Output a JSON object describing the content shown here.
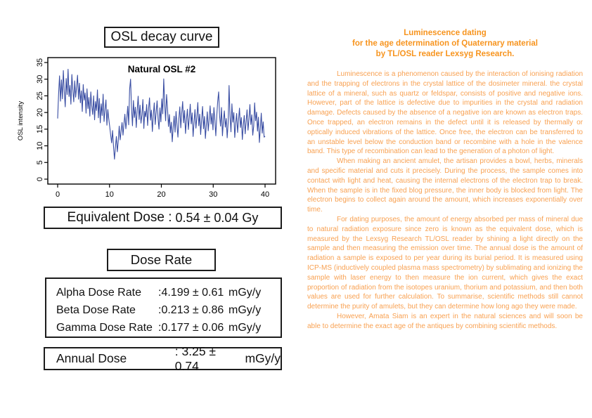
{
  "left_panel": {
    "decay_title": "OSL decay curve",
    "equivalent_dose": {
      "label": "Equivalent Dose :",
      "value": "0.54 ± 0.04",
      "unit": "Gy"
    },
    "dose_rate_title": "Dose Rate",
    "dose_rates": [
      {
        "label": "Alpha Dose Rate",
        "value": ":4.199 ± 0.61",
        "unit": "mGy/y"
      },
      {
        "label": "Beta Dose Rate",
        "value": ":0.213 ± 0.86",
        "unit": "mGy/y"
      },
      {
        "label": "Gamma Dose Rate",
        "value": ":0.177 ± 0.06",
        "unit": "mGy/y"
      }
    ],
    "annual_dose": {
      "label": "Annual Dose",
      "value": ": 3.25 ± 0.74",
      "unit": "mGy/y"
    }
  },
  "chart_data": {
    "type": "line",
    "title": "Natural OSL #2",
    "xlabel": "",
    "ylabel": "OSL intensity",
    "xlim": [
      0,
      40
    ],
    "ylim": [
      0,
      35
    ],
    "x_ticks": [
      0,
      10,
      20,
      30,
      40
    ],
    "y_ticks": [
      0,
      5,
      10,
      15,
      20,
      25,
      30,
      35
    ],
    "grid": false,
    "legend_position": "none",
    "line_color": "#3a4ea3",
    "values": [
      18.2,
      25.6,
      31.0,
      23.4,
      29.8,
      24.1,
      32.6,
      26.3,
      21.7,
      30.2,
      25.4,
      33.0,
      24.8,
      28.1,
      22.5,
      31.4,
      26.9,
      23.2,
      29.5,
      24.6,
      27.7,
      31.2,
      24.0,
      28.8,
      22.9,
      26.5,
      20.3,
      28.4,
      23.7,
      25.9,
      19.8,
      27.1,
      21.2,
      24.5,
      18.9,
      26.2,
      22.0,
      19.4,
      25.0,
      17.8,
      23.3,
      20.6,
      26.8,
      18.4,
      24.2,
      16.9,
      22.6,
      19.1,
      25.5,
      17.3,
      21.0,
      23.8,
      16.2,
      20.9,
      18.0,
      15.7,
      13.2,
      10.9,
      14.6,
      9.8,
      6.0,
      9.6,
      12.8,
      8.2,
      11.5,
      15.9,
      11.8,
      14.4,
      17.0,
      13.2,
      16.6,
      19.5,
      15.1,
      18.1,
      21.9,
      16.3,
      27.0,
      30.0,
      21.3,
      16.0,
      23.6,
      18.5,
      21.6,
      15.5,
      20.8,
      24.9,
      17.9,
      22.2,
      16.8,
      19.3,
      23.9,
      15.2,
      20.4,
      18.7,
      22.4,
      16.1,
      21.1,
      24.4,
      17.7,
      20.7,
      14.3,
      19.2,
      22.9,
      16.4,
      20.1,
      23.5,
      18.3,
      15.0,
      21.4,
      17.2,
      24.1,
      19.6,
      30.1,
      22.7,
      17.5,
      25.4,
      21.2,
      15.8,
      19.4,
      13.9,
      17.1,
      11.2,
      15.6,
      18.9,
      14.1,
      20.3,
      16.2,
      12.6,
      18.2,
      21.7,
      15.4,
      19.8,
      23.3,
      16.9,
      20.6,
      13.7,
      17.8,
      21.0,
      14.9,
      18.4,
      22.5,
      16.6,
      19.9,
      12.8,
      17.0,
      20.9,
      15.3,
      18.6,
      23.0,
      16.0,
      19.5,
      13.4,
      17.9,
      21.8,
      15.1,
      18.8,
      12.2,
      16.3,
      20.2,
      14.5,
      18.1,
      22.0,
      16.5,
      19.7,
      14.8,
      21.5,
      17.6,
      13.0,
      19.0,
      23.4,
      26.2,
      19.0,
      15.9,
      21.5,
      13.0,
      17.4,
      20.5,
      15.6,
      18.2,
      12.4,
      16.8,
      28.1,
      18.9,
      14.2,
      22.6,
      17.1,
      20.0,
      12.5,
      16.8,
      19.7,
      14.0,
      17.7,
      21.3,
      15.5,
      18.5,
      11.9,
      16.1,
      19.1,
      13.6,
      17.3,
      20.8,
      14.7,
      18.0,
      22.4,
      16.4,
      19.3,
      13.2,
      15.9,
      22.9,
      17.5,
      20.1,
      14.4,
      18.6,
      11.0,
      15.2,
      19.8,
      13.8,
      17.2,
      12.6,
      12.9
    ]
  },
  "right_panel": {
    "title_color": "#f7941e",
    "body_color": "#f8a152",
    "title_lines": [
      "Luminescence dating",
      "for the age determination of Quaternary material",
      "by TL/OSL reader Lexsyg Research."
    ],
    "paragraphs": [
      "Luminescence is a phenomenon caused by the interaction of ionising radiation and the trapping of electrons in the crystal lattice of the dosimeter mineral. the crystal lattice of a mineral, such as quartz or feldspar, consists of positive and negative ions. However, part of the lattice is defective due to impurities in the crystal and radiation damage. Defects caused by the absence of a negative ion are known as electron traps. Once trapped, an electron remains in the defect until it is released by thermally or optically induced vibrations of the lattice. Once free, the electron can be transferred to an unstable level below the conduction band or recombine with a hole in the valence band. This type of recombination can lead to the generation of a photon of light.",
      "When making an ancient amulet, the artisan provides a bowl, herbs, minerals and specific material and cuts it precisely. During the process, the sample comes into contact with light and heat, causing the internal electrons of the electron trap to break. When the sample is in the fixed blog pressure, the inner body is blocked from light. The electron begins to collect again around the amount, which increases exponentially over time.",
      "For dating purposes, the amount of energy absorbed per mass of mineral due to natural radiation exposure since zero is known as the equivalent dose, which is measured by the Lexsyg Research TL/OSL reader by shining a light directly on the sample and then measuring the emission over time. The annual dose is the amount of radiation a sample is exposed to per year during its burial period. It is measured using ICP-MS (inductively coupled plasma mass spectrometry) by sublimating and ionizing the sample with laser energy to then measure the ion current, which gives the exact proportion of radiation from the isotopes uranium, thorium and potassium, and then both values are used for further calculation. To summarise, scientific methods still cannot determine the purity of amulets, but they can determine how long ago they were made.",
      "However, Amata Siam is an expert in the natural sciences and will soon be able to determine the exact age of the antiques by combining scientific methods."
    ]
  }
}
